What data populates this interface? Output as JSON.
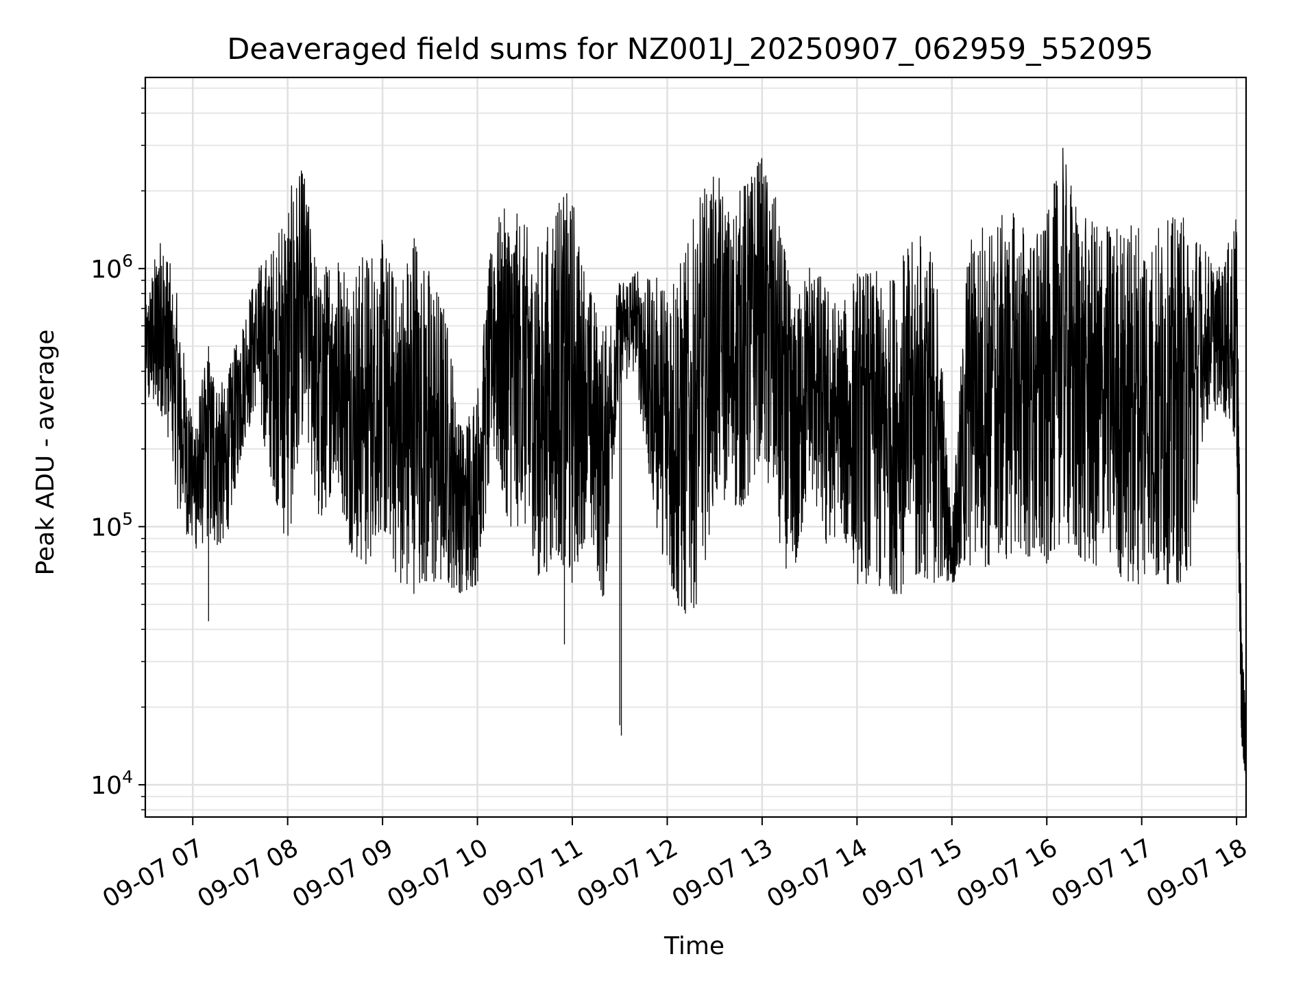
{
  "chart_data": {
    "type": "line",
    "title": "Deaveraged field sums for NZ001J_20250907_062959_552095",
    "xlabel": "Time",
    "ylabel": "Peak ADU - average",
    "yscale": "log",
    "ylim": [
      7500,
      5500000
    ],
    "xlim": [
      "2025-09-07 06:30",
      "2025-09-07 18:06"
    ],
    "grid": true,
    "line_color": "#000000",
    "x_ticks": [
      {
        "label": "09-07 07",
        "t": "2025-09-07 07:00"
      },
      {
        "label": "09-07 08",
        "t": "2025-09-07 08:00"
      },
      {
        "label": "09-07 09",
        "t": "2025-09-07 09:00"
      },
      {
        "label": "09-07 10",
        "t": "2025-09-07 10:00"
      },
      {
        "label": "09-07 11",
        "t": "2025-09-07 11:00"
      },
      {
        "label": "09-07 12",
        "t": "2025-09-07 12:00"
      },
      {
        "label": "09-07 13",
        "t": "2025-09-07 13:00"
      },
      {
        "label": "09-07 14",
        "t": "2025-09-07 14:00"
      },
      {
        "label": "09-07 15",
        "t": "2025-09-07 15:00"
      },
      {
        "label": "09-07 16",
        "t": "2025-09-07 16:00"
      },
      {
        "label": "09-07 17",
        "t": "2025-09-07 17:00"
      },
      {
        "label": "09-07 18",
        "t": "2025-09-07 18:00"
      }
    ],
    "y_ticks": [
      {
        "base": "10",
        "exp": "4",
        "value": 10000
      },
      {
        "base": "10",
        "exp": "5",
        "value": 100000
      },
      {
        "base": "10",
        "exp": "6",
        "value": 1000000
      }
    ],
    "x": [
      "2025-09-07 06:30",
      "2025-09-07 06:40",
      "2025-09-07 06:50",
      "2025-09-07 07:00",
      "2025-09-07 07:10",
      "2025-09-07 07:20",
      "2025-09-07 07:30",
      "2025-09-07 07:40",
      "2025-09-07 07:50",
      "2025-09-07 08:00",
      "2025-09-07 08:10",
      "2025-09-07 08:20",
      "2025-09-07 08:30",
      "2025-09-07 08:40",
      "2025-09-07 08:50",
      "2025-09-07 09:00",
      "2025-09-07 09:10",
      "2025-09-07 09:20",
      "2025-09-07 09:30",
      "2025-09-07 09:40",
      "2025-09-07 09:50",
      "2025-09-07 10:00",
      "2025-09-07 10:10",
      "2025-09-07 10:20",
      "2025-09-07 10:30",
      "2025-09-07 10:40",
      "2025-09-07 10:50",
      "2025-09-07 11:00",
      "2025-09-07 11:10",
      "2025-09-07 11:20",
      "2025-09-07 11:30",
      "2025-09-07 11:40",
      "2025-09-07 11:50",
      "2025-09-07 12:00",
      "2025-09-07 12:10",
      "2025-09-07 12:20",
      "2025-09-07 12:30",
      "2025-09-07 12:40",
      "2025-09-07 12:50",
      "2025-09-07 13:00",
      "2025-09-07 13:10",
      "2025-09-07 13:20",
      "2025-09-07 13:30",
      "2025-09-07 13:40",
      "2025-09-07 13:50",
      "2025-09-07 14:00",
      "2025-09-07 14:10",
      "2025-09-07 14:20",
      "2025-09-07 14:30",
      "2025-09-07 14:40",
      "2025-09-07 14:50",
      "2025-09-07 15:00",
      "2025-09-07 15:10",
      "2025-09-07 15:20",
      "2025-09-07 15:30",
      "2025-09-07 15:40",
      "2025-09-07 15:50",
      "2025-09-07 16:00",
      "2025-09-07 16:10",
      "2025-09-07 16:20",
      "2025-09-07 16:30",
      "2025-09-07 16:40",
      "2025-09-07 16:50",
      "2025-09-07 17:00",
      "2025-09-07 17:10",
      "2025-09-07 17:20",
      "2025-09-07 17:30",
      "2025-09-07 17:40",
      "2025-09-07 17:50",
      "2025-09-07 18:00",
      "2025-09-07 18:03",
      "2025-09-07 18:06"
    ],
    "series": [
      {
        "values_high": [
          700000,
          1500000,
          800000,
          250000,
          500000,
          350000,
          600000,
          1000000,
          1200000,
          2000000,
          2500000,
          900000,
          1300000,
          1000000,
          1200000,
          1300000,
          900000,
          1500000,
          1000000,
          700000,
          250000,
          350000,
          1500000,
          1800000,
          1500000,
          1200000,
          2000000,
          2000000,
          900000,
          600000,
          900000,
          1000000,
          900000,
          1000000,
          1100000,
          1900000,
          2500000,
          1700000,
          2300000,
          2800000,
          1800000,
          700000,
          1100000,
          900000,
          700000,
          1000000,
          1000000,
          900000,
          1200000,
          1400000,
          1100000,
          100000,
          1300000,
          1600000,
          1600000,
          1700000,
          1400000,
          1600000,
          3000000,
          1700000,
          1500000,
          1600000,
          1500000,
          1600000,
          1500000,
          1600000,
          1600000,
          1200000,
          1000000,
          1600000,
          40000,
          18000
        ],
        "values_low": [
          300000,
          280000,
          120000,
          80000,
          90000,
          80000,
          180000,
          300000,
          150000,
          80000,
          250000,
          100000,
          150000,
          80000,
          70000,
          100000,
          60000,
          55000,
          60000,
          60000,
          55000,
          60000,
          200000,
          100000,
          100000,
          60000,
          80000,
          60000,
          100000,
          50000,
          350000,
          400000,
          120000,
          60000,
          45000,
          50000,
          130000,
          120000,
          120000,
          200000,
          80000,
          60000,
          150000,
          80000,
          100000,
          60000,
          60000,
          55000,
          55000,
          65000,
          60000,
          60000,
          70000,
          70000,
          70000,
          80000,
          75000,
          70000,
          90000,
          75000,
          70000,
          70000,
          60000,
          60000,
          60000,
          60000,
          60000,
          250000,
          300000,
          200000,
          15000,
          10000
        ]
      }
    ],
    "spikes": [
      {
        "t": "2025-09-07 11:30",
        "value": 17000
      },
      {
        "t": "2025-09-07 11:31",
        "value": 15500
      },
      {
        "t": "2025-09-07 10:55",
        "value": 35000
      },
      {
        "t": "2025-09-07 07:10",
        "value": 43000
      }
    ]
  }
}
